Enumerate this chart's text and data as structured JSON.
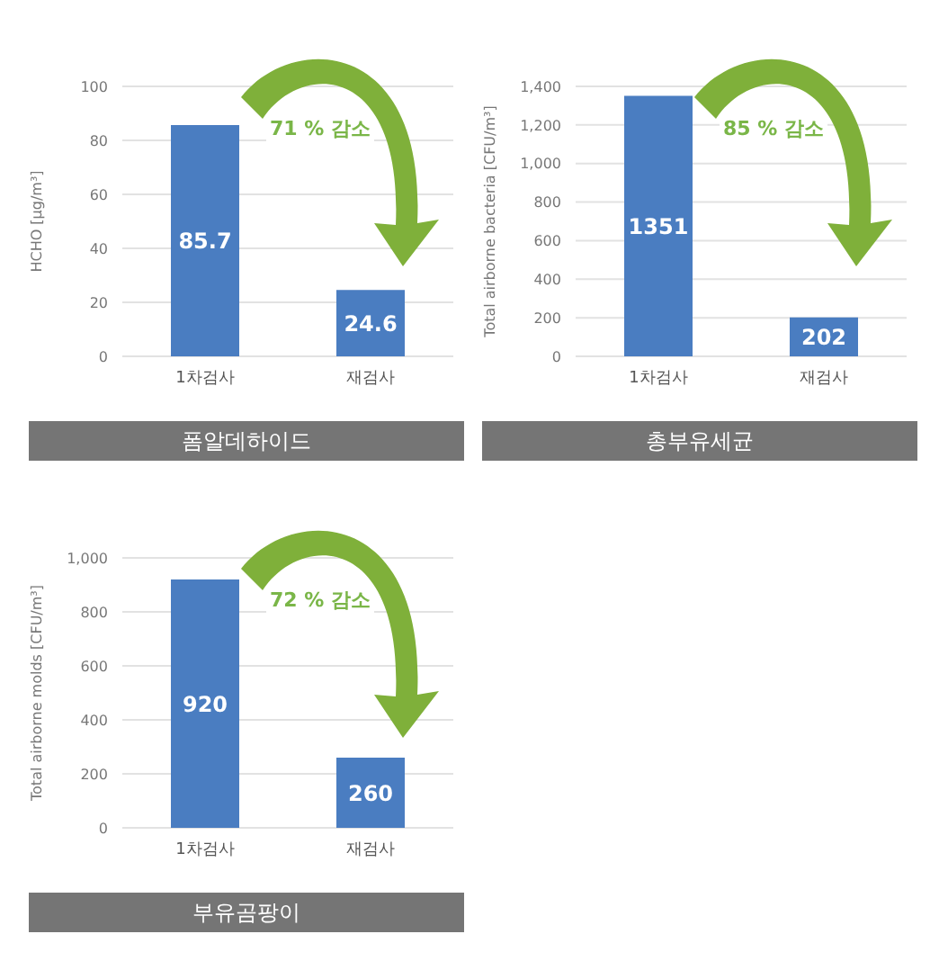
{
  "chart_data": [
    {
      "type": "bar",
      "title": "폼알데하이드",
      "ylabel": "HCHO [μg/m³]",
      "categories": [
        "1차검사",
        "재검사"
      ],
      "values": [
        85.7,
        24.6
      ],
      "color": "#4a7dc1",
      "ylim": [
        0,
        100
      ],
      "yticks": [
        0,
        20,
        40,
        60,
        80,
        100
      ],
      "grid": "y",
      "data_labels": true,
      "annotations": [
        "71 % 감소"
      ]
    },
    {
      "type": "bar",
      "title": "총부유세균",
      "ylabel": "Total airborne bacteria [CFU/m³]",
      "categories": [
        "1차검사",
        "재검사"
      ],
      "values": [
        1351,
        202
      ],
      "color": "#4a7dc1",
      "ylim": [
        0,
        1400
      ],
      "yticks": [
        0,
        200,
        400,
        600,
        800,
        {
          "value": 1000,
          "label": "1,000"
        },
        {
          "value": 1200,
          "label": "1,200"
        },
        {
          "value": 1400,
          "label": "1,400"
        }
      ],
      "grid": "y",
      "data_labels": true,
      "annotations": [
        "85 % 감소"
      ]
    },
    {
      "type": "bar",
      "title": "부유곰팡이",
      "ylabel": "Total airborne molds [CFU/m³]",
      "categories": [
        "1차검사",
        "재검사"
      ],
      "values": [
        920,
        260
      ],
      "color": "#4a7dc1",
      "ylim": [
        0,
        1000
      ],
      "yticks": [
        0,
        200,
        400,
        600,
        800,
        {
          "value": 1000,
          "label": "1,000"
        }
      ],
      "grid": "y",
      "data_labels": true,
      "annotations": [
        "72 % 감소"
      ]
    }
  ]
}
